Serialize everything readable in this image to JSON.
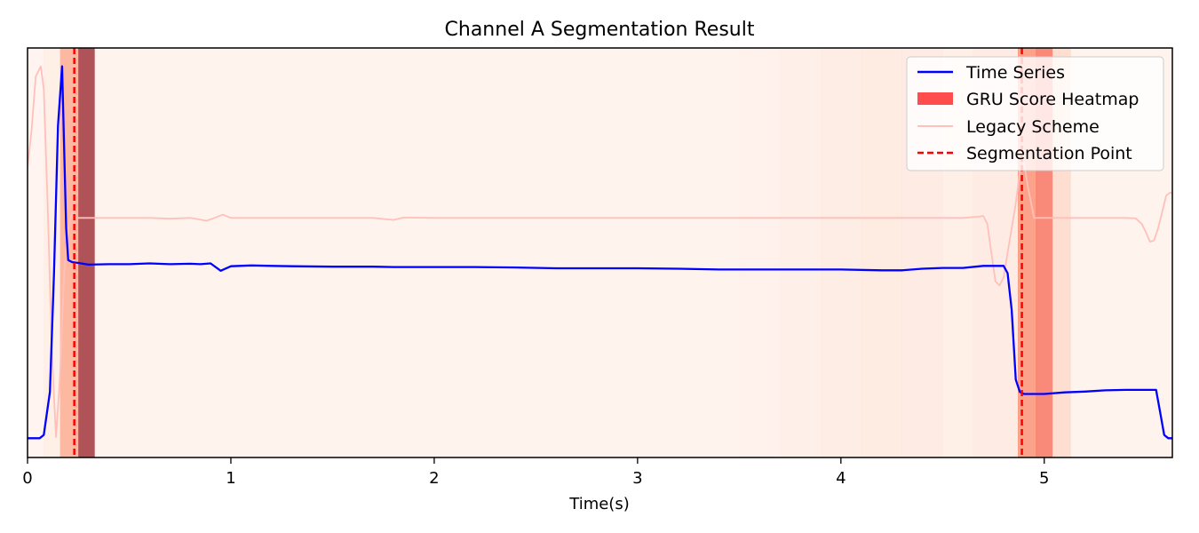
{
  "chart_data": {
    "type": "line",
    "title": "Channel A Segmentation Result",
    "xlabel": "Time(s)",
    "ylabel": "",
    "xlim": [
      0,
      5.63
    ],
    "ylim": [
      0,
      1
    ],
    "x_ticks": [
      0,
      1,
      2,
      3,
      4,
      5
    ],
    "y_ticks_shown": false,
    "grid": false,
    "legend": {
      "position": "top-right",
      "entries": [
        "Time Series",
        "GRU Score Heatmap",
        "Legacy Scheme",
        "Segmentation Point"
      ]
    },
    "colors": {
      "time_series": "#0000ff",
      "legacy_scheme": "#ffc0bb",
      "segmentation_point": "#ff0000",
      "heatmap_low": "#fff5f0",
      "heatmap_high": "#67000d",
      "legend_heatmap_patch": "#ff4d4d"
    },
    "series": [
      {
        "name": "Time Series",
        "style": "solid",
        "points": [
          [
            0,
            0.047
          ],
          [
            0.06,
            0.047
          ],
          [
            0.08,
            0.055
          ],
          [
            0.11,
            0.16
          ],
          [
            0.13,
            0.45
          ],
          [
            0.15,
            0.81
          ],
          [
            0.17,
            0.955
          ],
          [
            0.19,
            0.56
          ],
          [
            0.2,
            0.482
          ],
          [
            0.22,
            0.477
          ],
          [
            0.25,
            0.475
          ],
          [
            0.3,
            0.471
          ],
          [
            0.4,
            0.472
          ],
          [
            0.5,
            0.472
          ],
          [
            0.6,
            0.474
          ],
          [
            0.7,
            0.472
          ],
          [
            0.8,
            0.473
          ],
          [
            0.85,
            0.472
          ],
          [
            0.9,
            0.474
          ],
          [
            0.95,
            0.456
          ],
          [
            1.0,
            0.467
          ],
          [
            1.1,
            0.469
          ],
          [
            1.2,
            0.468
          ],
          [
            1.3,
            0.467
          ],
          [
            1.5,
            0.466
          ],
          [
            1.7,
            0.466
          ],
          [
            1.8,
            0.465
          ],
          [
            2.0,
            0.465
          ],
          [
            2.2,
            0.465
          ],
          [
            2.4,
            0.464
          ],
          [
            2.6,
            0.462
          ],
          [
            2.8,
            0.462
          ],
          [
            3.0,
            0.462
          ],
          [
            3.2,
            0.461
          ],
          [
            3.4,
            0.459
          ],
          [
            3.6,
            0.459
          ],
          [
            3.8,
            0.459
          ],
          [
            4.0,
            0.459
          ],
          [
            4.2,
            0.457
          ],
          [
            4.3,
            0.457
          ],
          [
            4.4,
            0.461
          ],
          [
            4.5,
            0.463
          ],
          [
            4.6,
            0.463
          ],
          [
            4.7,
            0.468
          ],
          [
            4.8,
            0.468
          ],
          [
            4.82,
            0.45
          ],
          [
            4.84,
            0.36
          ],
          [
            4.86,
            0.19
          ],
          [
            4.88,
            0.16
          ],
          [
            4.9,
            0.155
          ],
          [
            5.0,
            0.155
          ],
          [
            5.1,
            0.159
          ],
          [
            5.2,
            0.161
          ],
          [
            5.3,
            0.164
          ],
          [
            5.4,
            0.165
          ],
          [
            5.5,
            0.165
          ],
          [
            5.55,
            0.165
          ],
          [
            5.57,
            0.11
          ],
          [
            5.59,
            0.055
          ],
          [
            5.61,
            0.047
          ],
          [
            5.63,
            0.047
          ]
        ]
      },
      {
        "name": "Legacy Scheme",
        "style": "solid",
        "points": [
          [
            0,
            0.71
          ],
          [
            0.02,
            0.8
          ],
          [
            0.04,
            0.93
          ],
          [
            0.065,
            0.955
          ],
          [
            0.08,
            0.9
          ],
          [
            0.1,
            0.6
          ],
          [
            0.12,
            0.25
          ],
          [
            0.14,
            0.05
          ],
          [
            0.16,
            0.2
          ],
          [
            0.18,
            0.45
          ],
          [
            0.2,
            0.56
          ],
          [
            0.22,
            0.6
          ],
          [
            0.24,
            0.585
          ],
          [
            0.26,
            0.585
          ],
          [
            0.3,
            0.585
          ],
          [
            0.4,
            0.585
          ],
          [
            0.5,
            0.585
          ],
          [
            0.6,
            0.585
          ],
          [
            0.7,
            0.583
          ],
          [
            0.8,
            0.585
          ],
          [
            0.88,
            0.578
          ],
          [
            0.92,
            0.585
          ],
          [
            0.96,
            0.593
          ],
          [
            1.0,
            0.585
          ],
          [
            1.1,
            0.585
          ],
          [
            1.3,
            0.585
          ],
          [
            1.5,
            0.585
          ],
          [
            1.7,
            0.585
          ],
          [
            1.8,
            0.58
          ],
          [
            1.85,
            0.586
          ],
          [
            2.0,
            0.585
          ],
          [
            2.2,
            0.585
          ],
          [
            2.4,
            0.585
          ],
          [
            2.6,
            0.585
          ],
          [
            2.8,
            0.585
          ],
          [
            3.0,
            0.585
          ],
          [
            3.2,
            0.585
          ],
          [
            3.4,
            0.585
          ],
          [
            3.6,
            0.585
          ],
          [
            3.8,
            0.585
          ],
          [
            4.0,
            0.585
          ],
          [
            4.2,
            0.585
          ],
          [
            4.4,
            0.585
          ],
          [
            4.6,
            0.585
          ],
          [
            4.68,
            0.588
          ],
          [
            4.7,
            0.59
          ],
          [
            4.72,
            0.57
          ],
          [
            4.74,
            0.5
          ],
          [
            4.76,
            0.43
          ],
          [
            4.78,
            0.42
          ],
          [
            4.8,
            0.44
          ],
          [
            4.82,
            0.5
          ],
          [
            4.84,
            0.56
          ],
          [
            4.86,
            0.62
          ],
          [
            4.88,
            0.7
          ],
          [
            4.9,
            0.72
          ],
          [
            4.92,
            0.66
          ],
          [
            4.95,
            0.585
          ],
          [
            5.0,
            0.585
          ],
          [
            5.1,
            0.585
          ],
          [
            5.2,
            0.585
          ],
          [
            5.3,
            0.585
          ],
          [
            5.4,
            0.585
          ],
          [
            5.45,
            0.584
          ],
          [
            5.48,
            0.57
          ],
          [
            5.5,
            0.55
          ],
          [
            5.52,
            0.527
          ],
          [
            5.54,
            0.53
          ],
          [
            5.56,
            0.56
          ],
          [
            5.58,
            0.6
          ],
          [
            5.6,
            0.64
          ],
          [
            5.62,
            0.647
          ],
          [
            5.63,
            0.645
          ]
        ]
      }
    ],
    "segmentation_points": [
      0.23,
      4.89
    ],
    "heatmap_scores": [
      {
        "x": [
          0.0,
          0.08
        ],
        "score": 0.03
      },
      {
        "x": [
          0.08,
          0.16
        ],
        "score": 0.08
      },
      {
        "x": [
          0.16,
          0.25
        ],
        "score": 0.35
      },
      {
        "x": [
          0.25,
          0.33
        ],
        "score": 0.92
      },
      {
        "x": [
          0.33,
          3.5
        ],
        "score": 0.04
      },
      {
        "x": [
          3.5,
          3.7
        ],
        "score": 0.06
      },
      {
        "x": [
          3.7,
          3.9
        ],
        "score": 0.07
      },
      {
        "x": [
          3.9,
          4.1
        ],
        "score": 0.09
      },
      {
        "x": [
          4.1,
          4.3
        ],
        "score": 0.11
      },
      {
        "x": [
          4.3,
          4.5
        ],
        "score": 0.1
      },
      {
        "x": [
          4.5,
          4.65
        ],
        "score": 0.08
      },
      {
        "x": [
          4.65,
          4.87
        ],
        "score": 0.1
      },
      {
        "x": [
          4.87,
          4.96
        ],
        "score": 0.45
      },
      {
        "x": [
          4.96,
          5.04
        ],
        "score": 0.55
      },
      {
        "x": [
          5.04,
          5.13
        ],
        "score": 0.18
      },
      {
        "x": [
          5.13,
          5.63
        ],
        "score": 0.04
      }
    ]
  }
}
